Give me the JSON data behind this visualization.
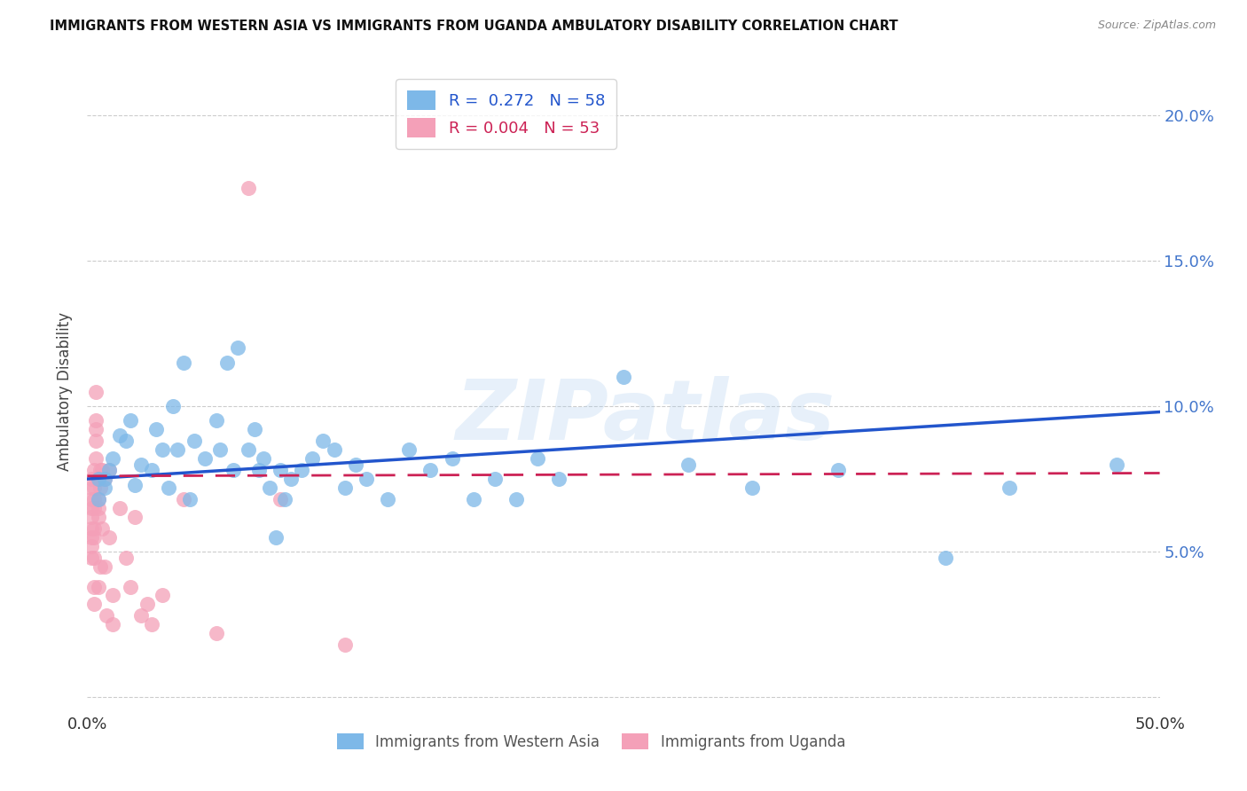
{
  "title": "IMMIGRANTS FROM WESTERN ASIA VS IMMIGRANTS FROM UGANDA AMBULATORY DISABILITY CORRELATION CHART",
  "source": "Source: ZipAtlas.com",
  "ylabel": "Ambulatory Disability",
  "xlim": [
    0.0,
    0.5
  ],
  "ylim": [
    -0.005,
    0.215
  ],
  "legend_blue_r": "0.272",
  "legend_blue_n": "58",
  "legend_pink_r": "0.004",
  "legend_pink_n": "53",
  "blue_color": "#7db8e8",
  "pink_color": "#f4a0b8",
  "trend_blue_color": "#2255cc",
  "trend_pink_color": "#cc2255",
  "watermark": "ZIPatlas",
  "blue_scatter_x": [
    0.005,
    0.005,
    0.008,
    0.01,
    0.012,
    0.015,
    0.018,
    0.02,
    0.022,
    0.025,
    0.03,
    0.032,
    0.035,
    0.038,
    0.04,
    0.042,
    0.045,
    0.048,
    0.05,
    0.055,
    0.06,
    0.062,
    0.065,
    0.068,
    0.07,
    0.075,
    0.078,
    0.08,
    0.082,
    0.085,
    0.088,
    0.09,
    0.092,
    0.095,
    0.1,
    0.105,
    0.11,
    0.115,
    0.12,
    0.125,
    0.13,
    0.14,
    0.15,
    0.16,
    0.17,
    0.18,
    0.19,
    0.2,
    0.21,
    0.22,
    0.25,
    0.28,
    0.31,
    0.35,
    0.4,
    0.43,
    0.48,
    0.008
  ],
  "blue_scatter_y": [
    0.075,
    0.068,
    0.072,
    0.078,
    0.082,
    0.09,
    0.088,
    0.095,
    0.073,
    0.08,
    0.078,
    0.092,
    0.085,
    0.072,
    0.1,
    0.085,
    0.115,
    0.068,
    0.088,
    0.082,
    0.095,
    0.085,
    0.115,
    0.078,
    0.12,
    0.085,
    0.092,
    0.078,
    0.082,
    0.072,
    0.055,
    0.078,
    0.068,
    0.075,
    0.078,
    0.082,
    0.088,
    0.085,
    0.072,
    0.08,
    0.075,
    0.068,
    0.085,
    0.078,
    0.082,
    0.068,
    0.075,
    0.068,
    0.082,
    0.075,
    0.11,
    0.08,
    0.072,
    0.078,
    0.048,
    0.072,
    0.08,
    0.075
  ],
  "pink_scatter_x": [
    0.002,
    0.002,
    0.002,
    0.002,
    0.002,
    0.002,
    0.002,
    0.002,
    0.002,
    0.003,
    0.003,
    0.003,
    0.003,
    0.003,
    0.003,
    0.003,
    0.003,
    0.003,
    0.004,
    0.004,
    0.004,
    0.004,
    0.004,
    0.005,
    0.005,
    0.005,
    0.005,
    0.005,
    0.006,
    0.006,
    0.006,
    0.007,
    0.007,
    0.008,
    0.008,
    0.009,
    0.01,
    0.01,
    0.012,
    0.012,
    0.015,
    0.018,
    0.02,
    0.022,
    0.025,
    0.028,
    0.03,
    0.035,
    0.045,
    0.06,
    0.075,
    0.09,
    0.12
  ],
  "pink_scatter_y": [
    0.075,
    0.072,
    0.068,
    0.065,
    0.062,
    0.058,
    0.055,
    0.052,
    0.048,
    0.078,
    0.072,
    0.068,
    0.065,
    0.058,
    0.055,
    0.048,
    0.038,
    0.032,
    0.082,
    0.088,
    0.092,
    0.095,
    0.105,
    0.075,
    0.068,
    0.065,
    0.062,
    0.038,
    0.078,
    0.072,
    0.045,
    0.078,
    0.058,
    0.075,
    0.045,
    0.028,
    0.078,
    0.055,
    0.035,
    0.025,
    0.065,
    0.048,
    0.038,
    0.062,
    0.028,
    0.032,
    0.025,
    0.035,
    0.068,
    0.022,
    0.175,
    0.068,
    0.018
  ],
  "blue_trend_x": [
    0.0,
    0.5
  ],
  "blue_trend_y": [
    0.075,
    0.098
  ],
  "pink_trend_x": [
    0.0,
    0.5
  ],
  "pink_trend_y": [
    0.076,
    0.077
  ],
  "ytick_positions": [
    0.0,
    0.05,
    0.1,
    0.15,
    0.2
  ],
  "ytick_labels": [
    "",
    "5.0%",
    "10.0%",
    "15.0%",
    "20.0%"
  ],
  "xtick_positions": [
    0.0,
    0.1,
    0.2,
    0.3,
    0.4,
    0.5
  ],
  "xtick_labels": [
    "0.0%",
    "",
    "",
    "",
    "",
    "50.0%"
  ]
}
